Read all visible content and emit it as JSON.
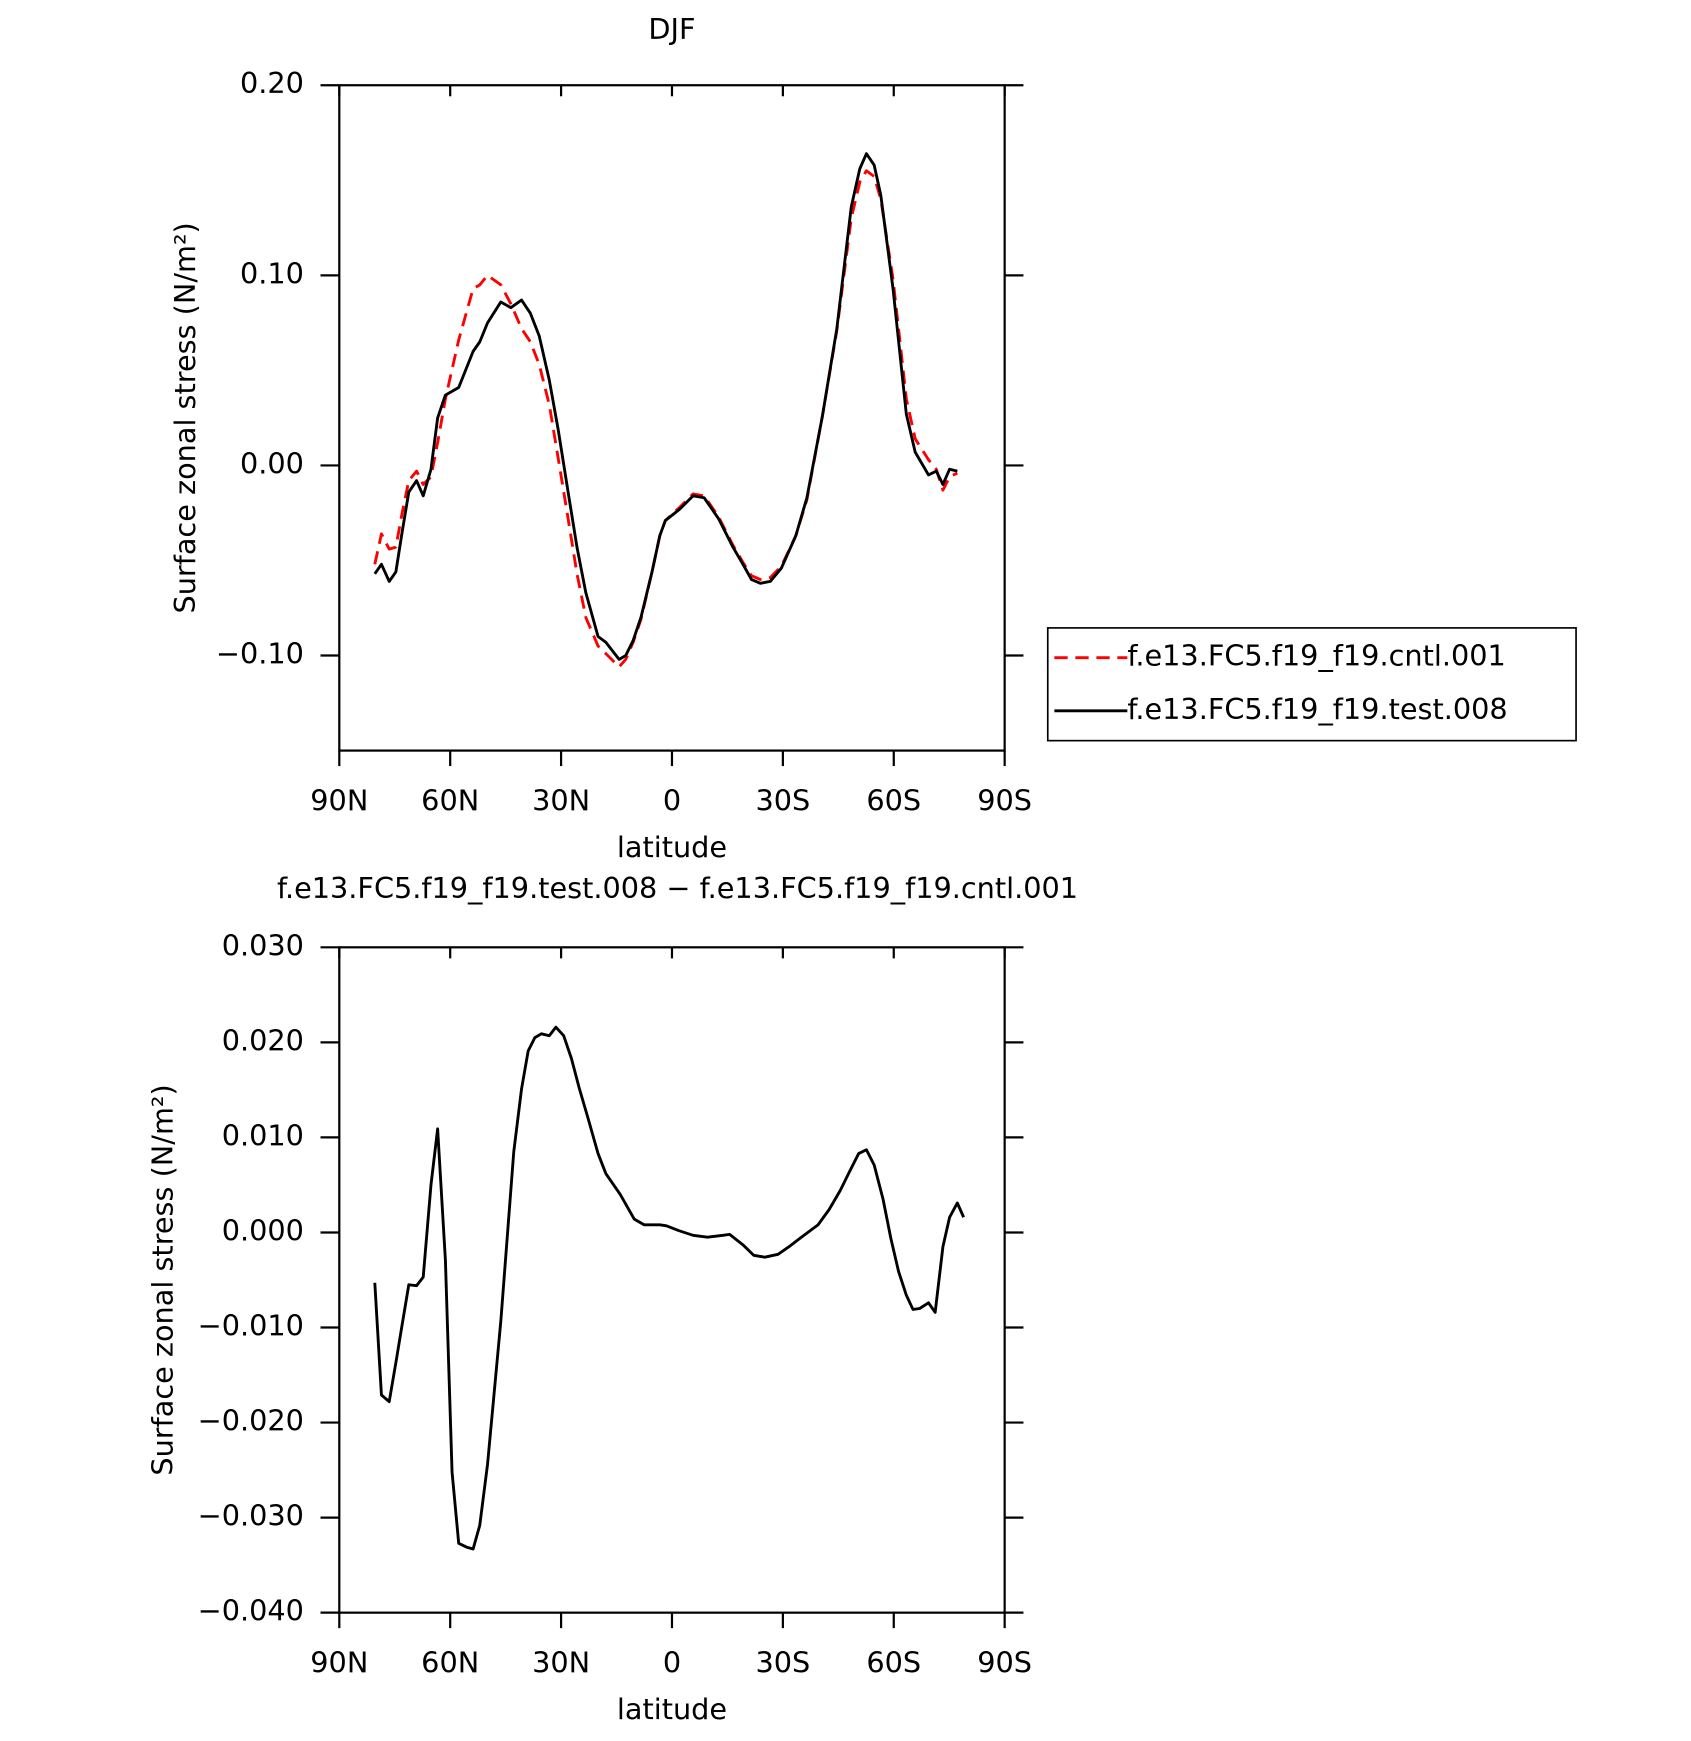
{
  "chart_data": [
    {
      "type": "line",
      "title": "DJF",
      "xlabel": "latitude",
      "ylabel": "Surface zonal stress (N/m²)",
      "x": [
        80.4,
        78.6,
        76.5,
        74.7,
        73.0,
        71.2,
        69.1,
        67.3,
        65.2,
        63.4,
        61.3,
        57.7,
        53.8,
        52.0,
        49.9,
        46.3,
        43.6,
        40.7,
        38.3,
        35.9,
        33.2,
        30.8,
        28.1,
        25.7,
        23.3,
        20.0,
        17.9,
        14.3,
        12.5,
        10.5,
        8.4,
        5.4,
        3.3,
        1.8,
        -2.1,
        -5.7,
        -8.7,
        -12.6,
        -16.5,
        -19.2,
        -21.5,
        -23.9,
        -26.6,
        -29.6,
        -33.5,
        -36.5,
        -40.7,
        -44.6,
        -48.5,
        -50.8,
        -52.6,
        -54.7,
        -56.5,
        -59.8,
        -63.4,
        -65.8,
        -69.4,
        -71.5,
        -73.3,
        -75.1,
        -77.2
      ],
      "series": [
        {
          "name": "f.e13.FC5.f19_f19.cntl.001",
          "color": "#ff0000",
          "style": "dashed",
          "values": [
            -0.052,
            -0.036,
            -0.044,
            -0.043,
            -0.025,
            -0.008,
            -0.003,
            -0.01,
            -0.006,
            0.012,
            0.035,
            0.066,
            0.093,
            0.095,
            0.1,
            0.095,
            0.085,
            0.072,
            0.065,
            0.053,
            0.032,
            0.004,
            -0.028,
            -0.057,
            -0.08,
            -0.095,
            -0.099,
            -0.106,
            -0.102,
            -0.093,
            -0.081,
            -0.056,
            -0.037,
            -0.029,
            -0.022,
            -0.015,
            -0.016,
            -0.027,
            -0.042,
            -0.051,
            -0.058,
            -0.06,
            -0.059,
            -0.053,
            -0.037,
            -0.018,
            0.026,
            0.071,
            0.13,
            0.149,
            0.155,
            0.152,
            0.14,
            0.098,
            0.035,
            0.014,
            0.003,
            -0.002,
            -0.013,
            -0.006,
            -0.004
          ]
        },
        {
          "name": "f.e13.FC5.f19_f19.test.008",
          "color": "#000000",
          "style": "solid",
          "values": [
            -0.057,
            -0.052,
            -0.061,
            -0.056,
            -0.035,
            -0.014,
            -0.008,
            -0.016,
            -0.002,
            0.025,
            0.037,
            0.041,
            0.06,
            0.065,
            0.075,
            0.086,
            0.083,
            0.087,
            0.08,
            0.068,
            0.045,
            0.019,
            -0.014,
            -0.043,
            -0.067,
            -0.09,
            -0.093,
            -0.102,
            -0.1,
            -0.092,
            -0.08,
            -0.056,
            -0.037,
            -0.029,
            -0.023,
            -0.016,
            -0.017,
            -0.028,
            -0.043,
            -0.052,
            -0.06,
            -0.062,
            -0.061,
            -0.054,
            -0.037,
            -0.017,
            0.026,
            0.072,
            0.136,
            0.156,
            0.164,
            0.158,
            0.142,
            0.093,
            0.027,
            0.007,
            -0.005,
            -0.003,
            -0.01,
            -0.002,
            -0.003
          ]
        }
      ],
      "xlim": [
        90,
        -90
      ],
      "xticks": [
        {
          "value": 90,
          "label": "90N"
        },
        {
          "value": 60,
          "label": "60N"
        },
        {
          "value": 30,
          "label": "30N"
        },
        0,
        {
          "value": -30,
          "label": "30S"
        },
        {
          "value": -60,
          "label": "60S"
        },
        {
          "value": -90,
          "label": "90S"
        }
      ],
      "ylim": [
        -0.15,
        0.2
      ],
      "yticks": [
        {
          "value": -0.1,
          "label": "−0.10"
        },
        {
          "value": 0,
          "label": "0.00"
        },
        {
          "value": 0.1,
          "label": "0.10"
        },
        {
          "value": 0.2,
          "label": "0.20"
        }
      ],
      "legend": "right"
    },
    {
      "type": "line",
      "title": "f.e13.FC5.f19_f19.test.008 − f.e13.FC5.f19_f19.cntl.001",
      "xlabel": "latitude",
      "ylabel": "Surface zonal stress (N/m²)",
      "x": [
        80.4,
        78.6,
        76.5,
        74.7,
        73.0,
        71.2,
        69.1,
        67.3,
        65.2,
        63.4,
        61.3,
        59.5,
        57.7,
        55.6,
        53.8,
        52.0,
        49.9,
        46.3,
        42.8,
        40.7,
        38.9,
        37.1,
        35.3,
        33.2,
        31.4,
        29.3,
        27.2,
        25.1,
        22.7,
        20.0,
        17.9,
        14.0,
        10.2,
        7.5,
        3.3,
        1.5,
        -1.8,
        -5.7,
        -9.6,
        -13.8,
        -15.6,
        -19.2,
        -22.1,
        -25.1,
        -28.7,
        -32.0,
        -35.0,
        -39.5,
        -42.5,
        -45.5,
        -47.9,
        -50.5,
        -52.6,
        -54.7,
        -57.1,
        -59.2,
        -61.3,
        -63.4,
        -65.2,
        -67.0,
        -69.4,
        -71.2,
        -73.3,
        -75.1,
        -77.2,
        -78.9
      ],
      "series": [
        {
          "color": "#000000",
          "style": "solid",
          "values": [
            -0.0053,
            -0.0171,
            -0.0178,
            -0.0137,
            -0.0097,
            -0.0055,
            -0.0056,
            -0.0047,
            0.005,
            0.0109,
            -0.0029,
            -0.0252,
            -0.0327,
            -0.0331,
            -0.0333,
            -0.0308,
            -0.0244,
            -0.0093,
            0.0085,
            0.0151,
            0.0191,
            0.0205,
            0.0209,
            0.0207,
            0.0216,
            0.0207,
            0.0183,
            0.0152,
            0.012,
            0.0083,
            0.0062,
            0.004,
            0.0014,
            0.0008,
            0.0008,
            0.0007,
            0.0002,
            -0.0003,
            -0.0005,
            -0.0003,
            -0.0002,
            -0.0013,
            -0.0024,
            -0.0026,
            -0.0023,
            -0.0014,
            -0.0005,
            0.0008,
            0.0024,
            0.0044,
            0.0063,
            0.0083,
            0.0087,
            0.0071,
            0.0035,
            -0.0006,
            -0.0041,
            -0.0066,
            -0.0081,
            -0.008,
            -0.0074,
            -0.0084,
            -0.0015,
            0.0016,
            0.0031,
            0.0016
          ]
        }
      ],
      "xlim": [
        90,
        -90
      ],
      "xticks": [
        {
          "value": 90,
          "label": "90N"
        },
        {
          "value": 60,
          "label": "60N"
        },
        {
          "value": 30,
          "label": "30N"
        },
        0,
        {
          "value": -30,
          "label": "30S"
        },
        {
          "value": -60,
          "label": "60S"
        },
        {
          "value": -90,
          "label": "90S"
        }
      ],
      "ylim": [
        -0.04,
        0.03
      ],
      "yticks": [
        {
          "value": -0.04,
          "label": "−0.040"
        },
        {
          "value": -0.03,
          "label": "−0.030"
        },
        {
          "value": -0.02,
          "label": "−0.020"
        },
        {
          "value": -0.01,
          "label": "−0.010"
        },
        {
          "value": 0,
          "label": "0.000"
        },
        {
          "value": 0.01,
          "label": "0.010"
        },
        {
          "value": 0.02,
          "label": "0.020"
        },
        {
          "value": 0.03,
          "label": "0.030"
        }
      ]
    }
  ]
}
